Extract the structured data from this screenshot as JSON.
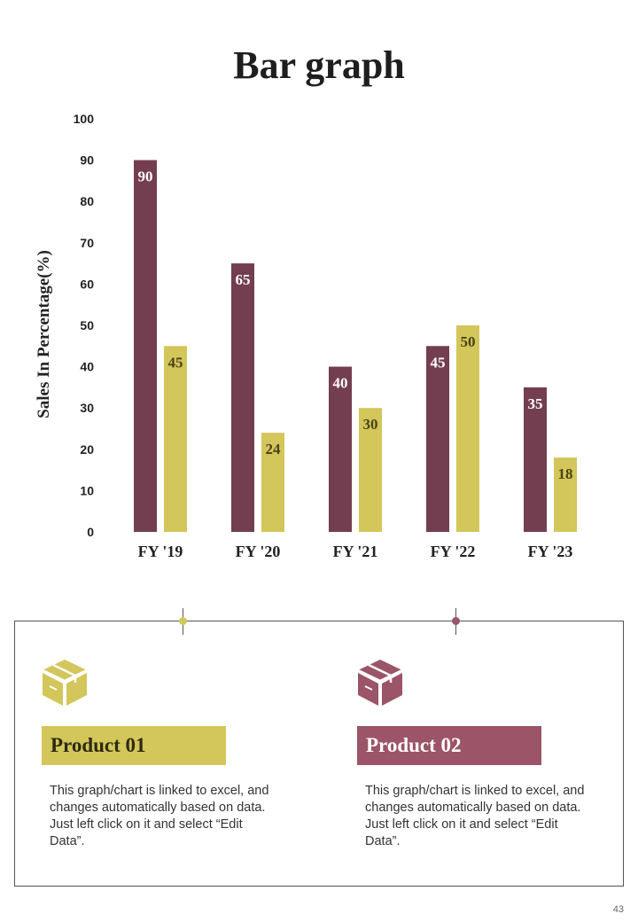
{
  "page": {
    "title": "Bar graph",
    "page_number": "43"
  },
  "colors": {
    "product1": "#D3C65A",
    "product2": "#733E50",
    "product2_label": "#9B5468",
    "text": "#222222"
  },
  "chart_data": {
    "type": "bar",
    "title": "Bar graph",
    "xlabel": "",
    "ylabel": "Sales In Percentage(%)",
    "ylim": [
      0,
      100
    ],
    "yticks": [
      0,
      10,
      20,
      30,
      40,
      50,
      60,
      70,
      80,
      90,
      100
    ],
    "categories": [
      "FY '19",
      "FY '20",
      "FY '21",
      "FY '22",
      "FY '23"
    ],
    "series": [
      {
        "name": "Product 02",
        "color": "#733E50",
        "values": [
          90,
          65,
          40,
          45,
          35
        ]
      },
      {
        "name": "Product 01",
        "color": "#D3C65A",
        "values": [
          45,
          24,
          30,
          50,
          18
        ]
      }
    ]
  },
  "products": [
    {
      "name": "Product 01",
      "icon": "box-icon",
      "description": "This graph/chart is linked to excel, and changes automatically based on data. Just left click on it and select “Edit Data”."
    },
    {
      "name": "Product 02",
      "icon": "box-icon",
      "description": "This graph/chart is linked to excel, and changes automatically based on data. Just left click on it and select “Edit Data”."
    }
  ]
}
